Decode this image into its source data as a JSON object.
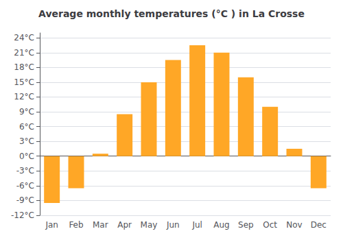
{
  "chart_data": {
    "type": "bar",
    "title": "Average monthly temperatures (°C ) in La Crosse",
    "categories": [
      "Jan",
      "Feb",
      "Mar",
      "Apr",
      "May",
      "Jun",
      "Jul",
      "Aug",
      "Sep",
      "Oct",
      "Nov",
      "Dec"
    ],
    "values": [
      -9.5,
      -6.5,
      0.5,
      8.5,
      15.0,
      19.5,
      22.5,
      21.0,
      16.0,
      10.0,
      1.5,
      -6.5
    ],
    "color": "#FFA726",
    "ylim": [
      -12,
      25
    ],
    "yticks": [
      {
        "value": -12,
        "label": "-12°C"
      },
      {
        "value": -9,
        "label": "-9°C"
      },
      {
        "value": -6,
        "label": "-6°C"
      },
      {
        "value": -3,
        "label": "-3°C"
      },
      {
        "value": 0,
        "label": "0°C"
      },
      {
        "value": 3,
        "label": "3°C"
      },
      {
        "value": 6,
        "label": "6°C"
      },
      {
        "value": 9,
        "label": "9°C"
      },
      {
        "value": 12,
        "label": "12°C"
      },
      {
        "value": 15,
        "label": "15°C"
      },
      {
        "value": 18,
        "label": "18°C"
      },
      {
        "value": 21,
        "label": "21°C"
      },
      {
        "value": 24,
        "label": "24°C"
      }
    ],
    "grid": true
  }
}
